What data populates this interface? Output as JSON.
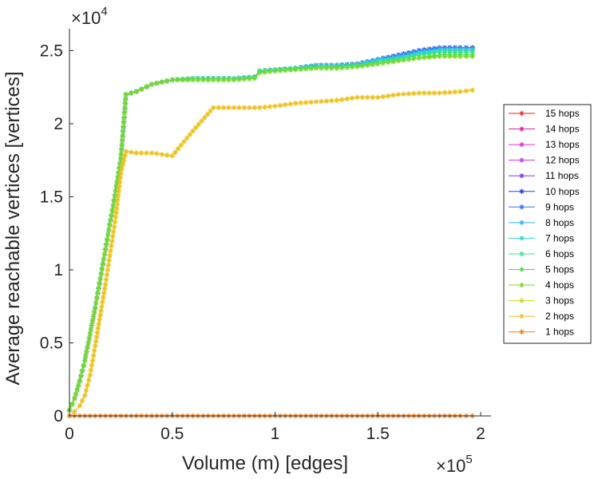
{
  "chart_data": {
    "type": "line",
    "title": "",
    "xlabel": "Volume (m) [edges]",
    "ylabel": "Average reachable vertices [vertices]",
    "x_multiplier": {
      "base": "×10",
      "exp": "5"
    },
    "y_multiplier": {
      "base": "×10",
      "exp": "4"
    },
    "xlim": [
      0,
      200000
    ],
    "ylim": [
      0,
      26500
    ],
    "x_ticks": [
      0,
      50000,
      100000,
      150000,
      200000
    ],
    "x_tick_labels": [
      "0",
      "0.5",
      "1",
      "1.5",
      "2"
    ],
    "y_ticks": [
      0,
      5000,
      10000,
      15000,
      20000,
      25000
    ],
    "y_tick_labels": [
      "0",
      "0.5",
      "1",
      "1.5",
      "2",
      "2.5"
    ],
    "grid": false,
    "legend_position": "right",
    "marker": "asterisk",
    "series": [
      {
        "name": "15 hops",
        "color": "#f21f1f",
        "x": [
          0,
          2500,
          5000,
          7500,
          10000,
          12500,
          15000,
          17500,
          20000,
          22500,
          25000,
          27500,
          32500,
          40000,
          50000,
          60000,
          70000,
          80000,
          90000,
          92500,
          100000,
          110000,
          120000,
          130000,
          140000,
          150000,
          160000,
          170000,
          180000,
          190000,
          196000
        ],
        "y": [
          400,
          1200,
          2400,
          3800,
          5600,
          7400,
          9400,
          11400,
          13400,
          15400,
          17600,
          22000,
          22200,
          22700,
          23000,
          23100,
          23100,
          23100,
          23200,
          23600,
          23700,
          23800,
          24000,
          24000,
          24100,
          24400,
          24700,
          25000,
          25200,
          25200,
          25200
        ]
      },
      {
        "name": "14 hops",
        "color": "#e61aa0",
        "x": [
          0,
          2500,
          5000,
          7500,
          10000,
          12500,
          15000,
          17500,
          20000,
          22500,
          25000,
          27500,
          32500,
          40000,
          50000,
          60000,
          70000,
          80000,
          90000,
          92500,
          100000,
          110000,
          120000,
          130000,
          140000,
          150000,
          160000,
          170000,
          180000,
          190000,
          196000
        ],
        "y": [
          400,
          1200,
          2400,
          3800,
          5600,
          7400,
          9400,
          11400,
          13400,
          15400,
          17600,
          22000,
          22200,
          22700,
          23000,
          23100,
          23100,
          23100,
          23200,
          23600,
          23700,
          23800,
          24000,
          24000,
          24100,
          24400,
          24700,
          25000,
          25200,
          25200,
          25200
        ]
      },
      {
        "name": "13 hops",
        "color": "#e627d6",
        "x": [
          0,
          2500,
          5000,
          7500,
          10000,
          12500,
          15000,
          17500,
          20000,
          22500,
          25000,
          27500,
          32500,
          40000,
          50000,
          60000,
          70000,
          80000,
          90000,
          92500,
          100000,
          110000,
          120000,
          130000,
          140000,
          150000,
          160000,
          170000,
          180000,
          190000,
          196000
        ],
        "y": [
          400,
          1200,
          2400,
          3800,
          5600,
          7400,
          9400,
          11400,
          13400,
          15400,
          17600,
          22000,
          22200,
          22700,
          23000,
          23100,
          23100,
          23100,
          23200,
          23600,
          23700,
          23800,
          24000,
          24000,
          24100,
          24400,
          24700,
          25000,
          25200,
          25200,
          25200
        ]
      },
      {
        "name": "12 hops",
        "color": "#c23ae6",
        "x": [
          0,
          2500,
          5000,
          7500,
          10000,
          12500,
          15000,
          17500,
          20000,
          22500,
          25000,
          27500,
          32500,
          40000,
          50000,
          60000,
          70000,
          80000,
          90000,
          92500,
          100000,
          110000,
          120000,
          130000,
          140000,
          150000,
          160000,
          170000,
          180000,
          190000,
          196000
        ],
        "y": [
          400,
          1200,
          2400,
          3800,
          5600,
          7400,
          9400,
          11400,
          13400,
          15400,
          17600,
          22000,
          22200,
          22700,
          23000,
          23100,
          23100,
          23100,
          23200,
          23600,
          23700,
          23800,
          24000,
          24000,
          24100,
          24400,
          24700,
          25000,
          25200,
          25200,
          25200
        ]
      },
      {
        "name": "11 hops",
        "color": "#7a3af0",
        "x": [
          0,
          2500,
          5000,
          7500,
          10000,
          12500,
          15000,
          17500,
          20000,
          22500,
          25000,
          27500,
          32500,
          40000,
          50000,
          60000,
          70000,
          80000,
          90000,
          92500,
          100000,
          110000,
          120000,
          130000,
          140000,
          150000,
          160000,
          170000,
          180000,
          190000,
          196000
        ],
        "y": [
          400,
          1200,
          2400,
          3800,
          5600,
          7400,
          9400,
          11400,
          13400,
          15400,
          17600,
          22000,
          22200,
          22700,
          23000,
          23100,
          23100,
          23100,
          23200,
          23600,
          23700,
          23800,
          24000,
          24000,
          24100,
          24400,
          24700,
          25000,
          25200,
          25200,
          25200
        ]
      },
      {
        "name": "10 hops",
        "color": "#2a3ae6",
        "x": [
          0,
          2500,
          5000,
          7500,
          10000,
          12500,
          15000,
          17500,
          20000,
          22500,
          25000,
          27500,
          32500,
          40000,
          50000,
          60000,
          70000,
          80000,
          90000,
          92500,
          100000,
          110000,
          120000,
          130000,
          140000,
          150000,
          160000,
          170000,
          180000,
          190000,
          196000
        ],
        "y": [
          400,
          1200,
          2400,
          3800,
          5600,
          7400,
          9400,
          11400,
          13400,
          15400,
          17600,
          22000,
          22200,
          22700,
          23000,
          23100,
          23100,
          23100,
          23200,
          23600,
          23700,
          23800,
          24000,
          24000,
          24100,
          24400,
          24700,
          25000,
          25200,
          25200,
          25200
        ]
      },
      {
        "name": "9 hops",
        "color": "#2a78f0",
        "x": [
          0,
          2500,
          5000,
          7500,
          10000,
          12500,
          15000,
          17500,
          20000,
          22500,
          25000,
          27500,
          32500,
          40000,
          50000,
          60000,
          70000,
          80000,
          90000,
          92500,
          100000,
          110000,
          120000,
          130000,
          140000,
          150000,
          160000,
          170000,
          180000,
          190000,
          196000
        ],
        "y": [
          400,
          1200,
          2400,
          3800,
          5600,
          7400,
          9400,
          11400,
          13400,
          15400,
          17600,
          22000,
          22200,
          22700,
          23000,
          23100,
          23100,
          23100,
          23200,
          23600,
          23700,
          23800,
          24000,
          24000,
          24100,
          24400,
          24700,
          25000,
          25200,
          25200,
          25200
        ]
      },
      {
        "name": "8 hops",
        "color": "#2ab4f0",
        "x": [
          0,
          2500,
          5000,
          7500,
          10000,
          12500,
          15000,
          17500,
          20000,
          22500,
          25000,
          27500,
          32500,
          40000,
          50000,
          60000,
          70000,
          80000,
          90000,
          92500,
          100000,
          110000,
          120000,
          130000,
          140000,
          150000,
          160000,
          170000,
          180000,
          190000,
          196000
        ],
        "y": [
          400,
          1200,
          2400,
          3800,
          5600,
          7400,
          9400,
          11400,
          13400,
          15400,
          17600,
          22000,
          22200,
          22700,
          23000,
          23100,
          23100,
          23100,
          23200,
          23600,
          23700,
          23800,
          24000,
          24000,
          24100,
          24400,
          24600,
          24900,
          25100,
          25100,
          25100
        ]
      },
      {
        "name": "7 hops",
        "color": "#2ad6d0",
        "x": [
          0,
          2500,
          5000,
          7500,
          10000,
          12500,
          15000,
          17500,
          20000,
          22500,
          25000,
          27500,
          32500,
          40000,
          50000,
          60000,
          70000,
          80000,
          90000,
          92500,
          100000,
          110000,
          120000,
          130000,
          140000,
          150000,
          160000,
          170000,
          180000,
          190000,
          196000
        ],
        "y": [
          400,
          1200,
          2400,
          3800,
          5600,
          7400,
          9400,
          11400,
          13400,
          15400,
          17600,
          22000,
          22200,
          22700,
          23000,
          23100,
          23100,
          23100,
          23200,
          23600,
          23700,
          23800,
          23900,
          23900,
          24000,
          24300,
          24500,
          24800,
          25000,
          25000,
          25000
        ]
      },
      {
        "name": "6 hops",
        "color": "#2ae68c",
        "x": [
          0,
          2500,
          5000,
          7500,
          10000,
          12500,
          15000,
          17500,
          20000,
          22500,
          25000,
          27500,
          32500,
          40000,
          50000,
          60000,
          70000,
          80000,
          90000,
          92500,
          100000,
          110000,
          120000,
          130000,
          140000,
          150000,
          160000,
          170000,
          180000,
          190000,
          196000
        ],
        "y": [
          400,
          1200,
          2400,
          3800,
          5600,
          7400,
          9400,
          11400,
          13400,
          15400,
          17600,
          22000,
          22200,
          22700,
          23000,
          23100,
          23100,
          23100,
          23200,
          23600,
          23700,
          23800,
          23900,
          23900,
          24000,
          24200,
          24400,
          24700,
          24900,
          24900,
          24900
        ]
      },
      {
        "name": "5 hops",
        "color": "#36e636",
        "x": [
          0,
          2500,
          5000,
          7500,
          10000,
          12500,
          15000,
          17500,
          20000,
          22500,
          25000,
          27500,
          32500,
          40000,
          50000,
          60000,
          70000,
          80000,
          90000,
          92500,
          100000,
          110000,
          120000,
          130000,
          140000,
          150000,
          160000,
          170000,
          180000,
          190000,
          196000
        ],
        "y": [
          400,
          1200,
          2400,
          3800,
          5600,
          7400,
          9400,
          11400,
          13400,
          15400,
          17600,
          22000,
          22200,
          22700,
          23000,
          23000,
          23000,
          23000,
          23100,
          23500,
          23600,
          23700,
          23800,
          23800,
          23900,
          24100,
          24300,
          24500,
          24700,
          24700,
          24700
        ]
      },
      {
        "name": "4 hops",
        "color": "#7ad62a",
        "x": [
          0,
          2500,
          5000,
          7500,
          10000,
          12500,
          15000,
          17500,
          20000,
          22500,
          25000,
          27500,
          32500,
          40000,
          50000,
          60000,
          70000,
          80000,
          90000,
          92500,
          100000,
          110000,
          120000,
          130000,
          140000,
          150000,
          160000,
          170000,
          180000,
          190000,
          196000
        ],
        "y": [
          400,
          1200,
          2400,
          3800,
          5600,
          7400,
          9400,
          11400,
          13400,
          15400,
          17600,
          22000,
          22200,
          22700,
          23000,
          23000,
          23000,
          23000,
          23100,
          23500,
          23600,
          23700,
          23800,
          23800,
          23900,
          24100,
          24300,
          24500,
          24600,
          24600,
          24600
        ]
      },
      {
        "name": "3 hops",
        "color": "#c8dc1a",
        "x": [
          0,
          2500,
          5000,
          7500,
          10000,
          12500,
          15000,
          17500,
          20000,
          22500,
          25000,
          27500,
          32500,
          40000,
          50000,
          60000,
          70000,
          80000,
          90000,
          92500,
          100000,
          110000,
          120000,
          130000,
          140000,
          150000,
          160000,
          170000,
          180000,
          190000,
          196000
        ],
        "y": [
          0,
          300,
          700,
          1400,
          2800,
          4800,
          6900,
          9000,
          11300,
          13600,
          16600,
          18100,
          18000,
          18000,
          17800,
          19500,
          21100,
          21100,
          21100,
          21100,
          21200,
          21400,
          21500,
          21600,
          21800,
          21800,
          22000,
          22100,
          22100,
          22200,
          22300
        ]
      },
      {
        "name": "2 hops",
        "color": "#f0be1a",
        "x": [
          0,
          2500,
          5000,
          7500,
          10000,
          12500,
          15000,
          17500,
          20000,
          22500,
          25000,
          27500,
          32500,
          40000,
          50000,
          60000,
          70000,
          80000,
          90000,
          92500,
          100000,
          110000,
          120000,
          130000,
          140000,
          150000,
          160000,
          170000,
          180000,
          190000,
          196000
        ],
        "y": [
          0,
          300,
          700,
          1400,
          2800,
          4800,
          6900,
          9000,
          11300,
          13600,
          16600,
          18100,
          18000,
          18000,
          17800,
          19500,
          21100,
          21100,
          21100,
          21100,
          21200,
          21400,
          21500,
          21600,
          21800,
          21800,
          22000,
          22100,
          22100,
          22200,
          22300
        ]
      },
      {
        "name": "1 hops",
        "color": "#f57d1a",
        "x": [
          0,
          10000,
          20000,
          30000,
          40000,
          50000,
          60000,
          70000,
          80000,
          90000,
          100000,
          110000,
          120000,
          130000,
          140000,
          150000,
          160000,
          170000,
          180000,
          190000,
          196000
        ],
        "y": [
          3,
          3,
          3,
          3,
          3,
          3,
          3,
          3,
          3,
          3,
          3,
          3,
          3,
          3,
          3,
          3,
          3,
          3,
          3,
          3,
          3
        ]
      }
    ]
  }
}
